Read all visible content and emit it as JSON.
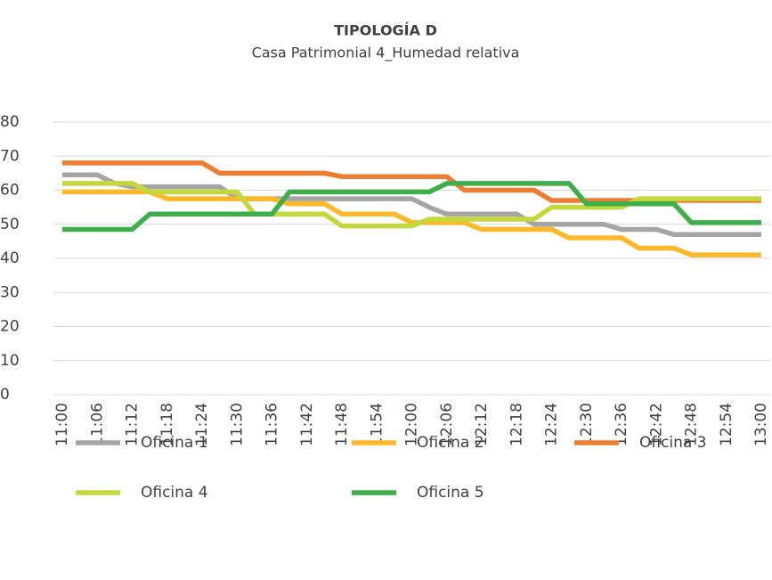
{
  "chart_data": {
    "type": "line",
    "title": "TIPOLOGÍA D",
    "subtitle": "Casa Patrimonial 4_Humedad relativa",
    "categories": [
      "11:00",
      null,
      "11:06",
      null,
      "11:12",
      null,
      "11:18",
      null,
      "11:24",
      null,
      "11:30",
      null,
      "11:36",
      null,
      "11:42",
      null,
      "11:48",
      null,
      "11:54",
      null,
      "12:00",
      null,
      "12:06",
      null,
      "12:12",
      null,
      "12:18",
      null,
      "12:24",
      null,
      "12:30",
      null,
      "12:36",
      null,
      "12:42",
      null,
      "12:48",
      null,
      "12:54",
      null,
      "13:00"
    ],
    "series": [
      {
        "name": "Oficina 1",
        "color": "#a5a5a5",
        "values": [
          64.5,
          64.5,
          64.5,
          62,
          61,
          61,
          61,
          61,
          61,
          61,
          57.5,
          57.5,
          57.5,
          57.5,
          57.5,
          57.5,
          57.5,
          57.5,
          57.5,
          57.5,
          57.5,
          55,
          53,
          53,
          53,
          53,
          53,
          50,
          50,
          50,
          50,
          50,
          48.5,
          48.5,
          48.5,
          47,
          47,
          47,
          47,
          47,
          47
        ]
      },
      {
        "name": "Oficina 2",
        "color": "#fbb829",
        "values": [
          59.5,
          59.5,
          59.5,
          59.5,
          59.5,
          59.5,
          57.5,
          57.5,
          57.5,
          57.5,
          57.5,
          57.5,
          57.5,
          56,
          56,
          56,
          53,
          53,
          53,
          53,
          50.5,
          50.5,
          50.5,
          50.5,
          48.5,
          48.5,
          48.5,
          48.5,
          48.5,
          46,
          46,
          46,
          46,
          43,
          43,
          43,
          41,
          41,
          41,
          41,
          41
        ]
      },
      {
        "name": "Oficina 3",
        "color": "#ed7d31",
        "values": [
          68,
          68,
          68,
          68,
          68,
          68,
          68,
          68,
          68,
          65,
          65,
          65,
          65,
          65,
          65,
          65,
          64,
          64,
          64,
          64,
          64,
          64,
          64,
          60,
          60,
          60,
          60,
          60,
          57,
          57,
          57,
          57,
          57,
          57,
          57,
          57,
          57,
          57,
          57,
          57,
          57
        ]
      },
      {
        "name": "Oficina 4",
        "color": "#c3d83c",
        "values": [
          62,
          62,
          62,
          62,
          62,
          59.5,
          59.5,
          59.5,
          59.5,
          59.5,
          59.5,
          53,
          53,
          53,
          53,
          53,
          49.5,
          49.5,
          49.5,
          49.5,
          49.5,
          51.5,
          51.5,
          51.5,
          51.5,
          51.5,
          51.5,
          51.5,
          55,
          55,
          55,
          55,
          55,
          57.5,
          57.5,
          57.5,
          57.5,
          57.5,
          57.5,
          57.5,
          57.5
        ]
      },
      {
        "name": "Oficina 5",
        "color": "#3fae49",
        "values": [
          48.5,
          48.5,
          48.5,
          48.5,
          48.5,
          53,
          53,
          53,
          53,
          53,
          53,
          53,
          53,
          59.5,
          59.5,
          59.5,
          59.5,
          59.5,
          59.5,
          59.5,
          59.5,
          59.5,
          62,
          62,
          62,
          62,
          62,
          62,
          62,
          62,
          56,
          56,
          56,
          56,
          56,
          56,
          50.5,
          50.5,
          50.5,
          50.5,
          50.5
        ]
      }
    ],
    "ylim": [
      0,
      80
    ],
    "yticks": [
      0,
      10,
      20,
      30,
      40,
      50,
      60,
      70,
      80
    ],
    "grid": true
  }
}
